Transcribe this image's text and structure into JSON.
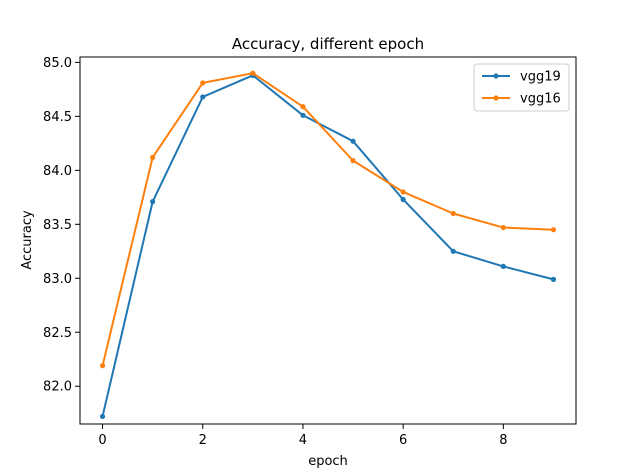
{
  "chart_data": {
    "type": "line",
    "title": "Accuracy, different epoch",
    "xlabel": "epoch",
    "ylabel": "Accuracy",
    "x": [
      0,
      1,
      2,
      3,
      4,
      5,
      6,
      7,
      8,
      9
    ],
    "xlim": [
      -0.45,
      9.45
    ],
    "ylim": [
      81.65,
      85.05
    ],
    "xticks": [
      0,
      2,
      4,
      6,
      8
    ],
    "yticks": [
      82.0,
      82.5,
      83.0,
      83.5,
      84.0,
      84.5,
      85.0
    ],
    "grid": false,
    "legend_position": "top-right",
    "series": [
      {
        "name": "vgg19",
        "color": "#1f77b4",
        "values": [
          81.72,
          83.71,
          84.68,
          84.88,
          84.51,
          84.27,
          83.73,
          83.25,
          83.11,
          82.99
        ]
      },
      {
        "name": "vgg16",
        "color": "#ff7f0e",
        "values": [
          82.19,
          84.12,
          84.81,
          84.9,
          84.59,
          84.09,
          83.8,
          83.6,
          83.47,
          83.45
        ]
      }
    ]
  }
}
